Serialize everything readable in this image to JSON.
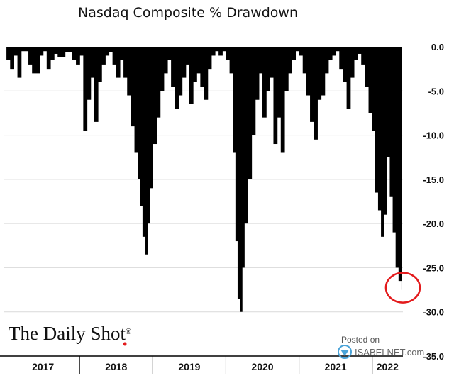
{
  "chart_data": {
    "type": "area",
    "title": "Nasdaq Composite % Drawdown",
    "xlabel": "",
    "ylabel": "",
    "ylim": [
      -35,
      0
    ],
    "yticks": [
      "0.0",
      "-5.0",
      "-10.0",
      "-15.0",
      "-20.0",
      "-25.0",
      "-30.0",
      "-35.0"
    ],
    "x_labels": [
      "2017",
      "2018",
      "2019",
      "2020",
      "2021",
      "2022"
    ],
    "grid": true,
    "x": [
      2017.0,
      2017.05,
      2017.1,
      2017.15,
      2017.2,
      2017.3,
      2017.35,
      2017.45,
      2017.5,
      2017.55,
      2017.6,
      2017.65,
      2017.7,
      2017.8,
      2017.9,
      2017.95,
      2018.0,
      2018.05,
      2018.1,
      2018.15,
      2018.2,
      2018.25,
      2018.3,
      2018.35,
      2018.4,
      2018.45,
      2018.5,
      2018.55,
      2018.6,
      2018.65,
      2018.7,
      2018.75,
      2018.8,
      2018.83,
      2018.86,
      2018.9,
      2018.93,
      2018.96,
      2019.0,
      2019.05,
      2019.1,
      2019.15,
      2019.2,
      2019.25,
      2019.3,
      2019.35,
      2019.4,
      2019.45,
      2019.5,
      2019.55,
      2019.6,
      2019.65,
      2019.7,
      2019.75,
      2019.8,
      2019.85,
      2019.9,
      2019.95,
      2020.0,
      2020.05,
      2020.1,
      2020.13,
      2020.16,
      2020.19,
      2020.22,
      2020.25,
      2020.3,
      2020.35,
      2020.4,
      2020.45,
      2020.5,
      2020.55,
      2020.6,
      2020.65,
      2020.7,
      2020.75,
      2020.8,
      2020.85,
      2020.9,
      2020.95,
      2021.0,
      2021.05,
      2021.1,
      2021.15,
      2021.2,
      2021.25,
      2021.3,
      2021.35,
      2021.4,
      2021.45,
      2021.5,
      2021.55,
      2021.6,
      2021.65,
      2021.7,
      2021.75,
      2021.8,
      2021.85,
      2021.9,
      2021.95,
      2022.0,
      2022.04,
      2022.08,
      2022.12,
      2022.16,
      2022.2,
      2022.24,
      2022.28,
      2022.32,
      2022.36,
      2022.4
    ],
    "series": [
      {
        "values": [
          -1.5,
          -2.5,
          -1.0,
          -3.5,
          -0.5,
          -2.0,
          -3.0,
          -1.0,
          -0.5,
          -2.5,
          -1.5,
          -0.8,
          -1.2,
          -0.6,
          -1.5,
          -2.0,
          -1.0,
          -9.5,
          -6.0,
          -3.5,
          -8.5,
          -4.0,
          -2.0,
          -1.0,
          -0.6,
          -2.0,
          -3.5,
          -1.5,
          -3.5,
          -5.5,
          -9.0,
          -12.0,
          -15.0,
          -18.0,
          -21.5,
          -23.5,
          -20.0,
          -16.0,
          -11.0,
          -8.0,
          -5.0,
          -3.0,
          -1.5,
          -4.5,
          -7.0,
          -5.5,
          -3.5,
          -2.0,
          -6.5,
          -4.0,
          -3.0,
          -4.5,
          -6.0,
          -2.5,
          -1.0,
          -0.5,
          -1.0,
          -0.5,
          -1.5,
          -3.0,
          -12.0,
          -22.0,
          -28.5,
          -30.0,
          -25.0,
          -20.0,
          -15.0,
          -10.0,
          -6.0,
          -3.0,
          -8.0,
          -5.0,
          -3.5,
          -11.0,
          -8.0,
          -12.0,
          -5.0,
          -3.0,
          -1.5,
          -0.5,
          -1.0,
          -3.0,
          -5.5,
          -8.5,
          -10.5,
          -6.0,
          -5.5,
          -3.0,
          -1.5,
          -1.0,
          -0.5,
          -2.5,
          -4.0,
          -7.0,
          -3.5,
          -1.5,
          -0.8,
          -2.0,
          -4.5,
          -7.5,
          -9.5,
          -16.5,
          -18.5,
          -21.5,
          -19.0,
          -12.5,
          -17.0,
          -21.0,
          -25.0,
          -26.5,
          -27.5
        ]
      }
    ],
    "annotation": "red circle marks the latest drawdown",
    "colors": {
      "fill": "#000000",
      "grid": "#d9d9d9",
      "highlight": "#e31a1c",
      "logo_dot": "#e31a1c",
      "brand_badge": "#4aa3d8"
    }
  },
  "branding": {
    "logo": "The Daily Shot",
    "logo_mark": "®",
    "posted_label": "Posted on",
    "posted_site": "ISABELNET.com"
  }
}
